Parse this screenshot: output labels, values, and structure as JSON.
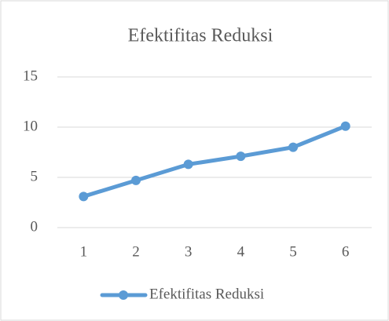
{
  "chart_data": {
    "type": "line",
    "title": "Efektifitas Reduksi",
    "categories": [
      1,
      2,
      3,
      4,
      5,
      6
    ],
    "series": [
      {
        "name": "Efektifitas Reduksi",
        "color": "#5b9bd5",
        "values": [
          3.1,
          4.7,
          6.3,
          7.1,
          8.0,
          10.1
        ]
      }
    ],
    "ylim": [
      0,
      15
    ],
    "yticks": [
      0,
      5,
      10,
      15
    ],
    "grid": true,
    "legend": "bottom"
  }
}
